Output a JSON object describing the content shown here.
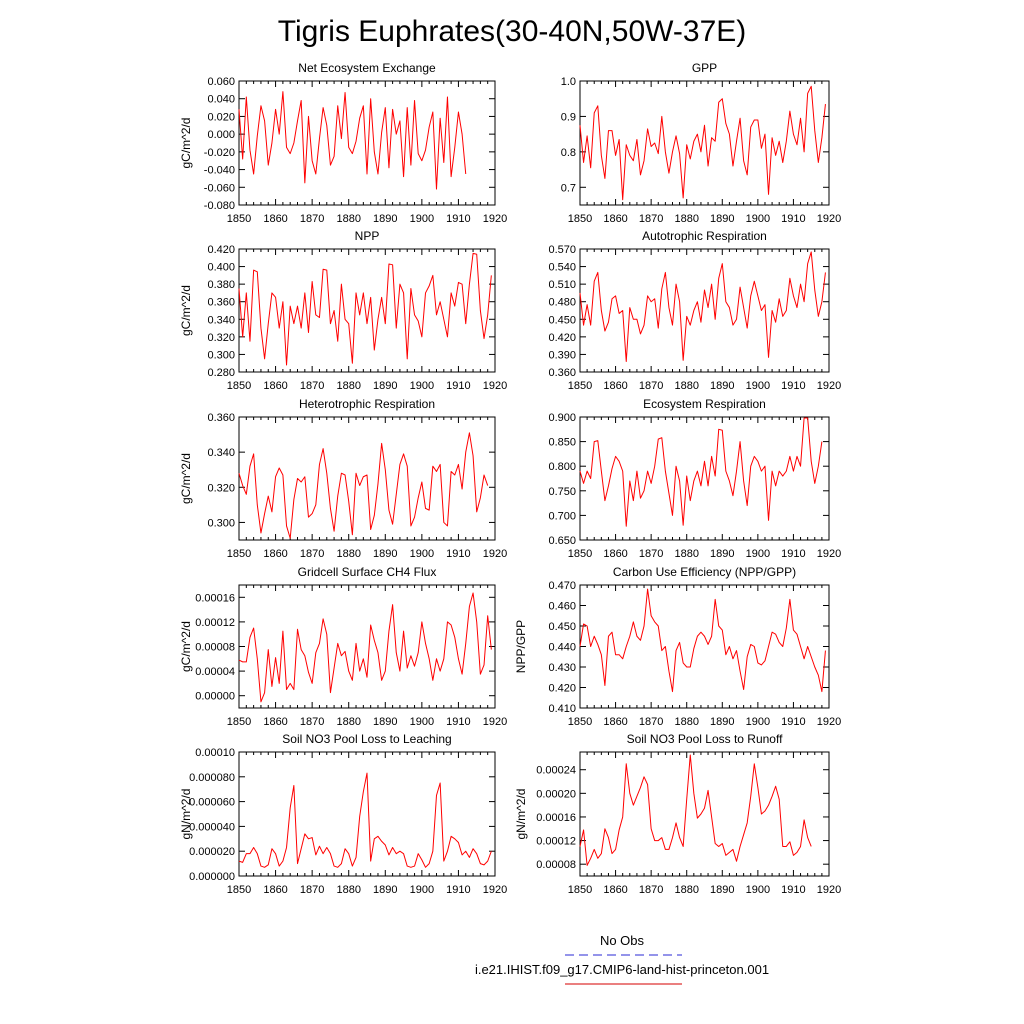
{
  "title": "Tigris Euphrates(30-40N,50W-37E)",
  "legend": {
    "entries": [
      {
        "label": "No Obs",
        "color": "#5555dd",
        "dash": true
      },
      {
        "label": "i.e21.IHIST.f09_g17.CMIP6-land-hist-princeton.001",
        "color": "#dd3333",
        "dash": false
      }
    ]
  },
  "colors": {
    "series": "#ff0000",
    "axis": "#000000"
  },
  "x_tick_labels": [
    "1850",
    "1860",
    "1870",
    "1880",
    "1890",
    "1900",
    "1910",
    "1920"
  ],
  "chart_data": [
    {
      "type": "line",
      "title": "Net Ecosystem Exchange",
      "ylabel": "gC/m^2/d",
      "xlim": [
        1850,
        1920
      ],
      "ylim": [
        -0.08,
        0.06
      ],
      "yticks": [
        "0.060",
        "0.040",
        "0.020",
        "0.000",
        "-0.020",
        "-0.040",
        "-0.060",
        "-0.080"
      ],
      "x_start": 1850,
      "values": [
        0.028,
        -0.028,
        0.042,
        -0.018,
        -0.045,
        -0.002,
        0.032,
        0.015,
        -0.035,
        -0.01,
        0.028,
        0.0,
        0.048,
        -0.015,
        -0.022,
        -0.01,
        0.015,
        0.038,
        -0.055,
        0.02,
        -0.03,
        -0.045,
        -0.005,
        0.03,
        0.01,
        -0.035,
        -0.025,
        0.032,
        -0.005,
        0.047,
        -0.015,
        -0.022,
        -0.008,
        0.018,
        0.032,
        -0.045,
        0.04,
        -0.02,
        -0.045,
        0.002,
        0.03,
        -0.038,
        0.028,
        0.0,
        0.015,
        -0.048,
        0.03,
        -0.035,
        0.038,
        -0.022,
        -0.03,
        -0.018,
        0.008,
        0.025,
        -0.062,
        0.018,
        -0.032,
        0.042,
        -0.048,
        -0.015,
        0.025,
        0.0,
        -0.045
      ]
    },
    {
      "type": "line",
      "title": "GPP",
      "ylabel": "",
      "xlim": [
        1850,
        1920
      ],
      "ylim": [
        0.65,
        1.0
      ],
      "yticks": [
        "1.0",
        "0.9",
        "0.8",
        "0.7"
      ],
      "x_start": 1850,
      "values": [
        0.875,
        0.77,
        0.845,
        0.755,
        0.91,
        0.93,
        0.79,
        0.725,
        0.86,
        0.86,
        0.79,
        0.835,
        0.665,
        0.82,
        0.79,
        0.775,
        0.835,
        0.735,
        0.775,
        0.865,
        0.815,
        0.825,
        0.795,
        0.9,
        0.8,
        0.74,
        0.8,
        0.845,
        0.795,
        0.67,
        0.82,
        0.78,
        0.83,
        0.85,
        0.8,
        0.875,
        0.76,
        0.84,
        0.83,
        0.94,
        0.95,
        0.88,
        0.85,
        0.76,
        0.83,
        0.895,
        0.775,
        0.735,
        0.87,
        0.89,
        0.89,
        0.81,
        0.85,
        0.68,
        0.84,
        0.79,
        0.83,
        0.77,
        0.83,
        0.915,
        0.85,
        0.82,
        0.895,
        0.8,
        0.965,
        0.985,
        0.86,
        0.77,
        0.84,
        0.935
      ]
    },
    {
      "type": "line",
      "title": "NPP",
      "ylabel": "gC/m^2/d",
      "xlim": [
        1850,
        1920
      ],
      "ylim": [
        0.28,
        0.42
      ],
      "yticks": [
        "0.420",
        "0.400",
        "0.380",
        "0.360",
        "0.340",
        "0.320",
        "0.300",
        "0.280"
      ],
      "x_start": 1850,
      "values": [
        0.375,
        0.32,
        0.37,
        0.315,
        0.396,
        0.394,
        0.33,
        0.295,
        0.335,
        0.37,
        0.365,
        0.33,
        0.36,
        0.288,
        0.355,
        0.335,
        0.355,
        0.33,
        0.37,
        0.325,
        0.383,
        0.345,
        0.342,
        0.397,
        0.396,
        0.335,
        0.35,
        0.315,
        0.38,
        0.34,
        0.335,
        0.29,
        0.37,
        0.345,
        0.37,
        0.335,
        0.365,
        0.305,
        0.34,
        0.365,
        0.335,
        0.403,
        0.402,
        0.33,
        0.38,
        0.37,
        0.295,
        0.375,
        0.345,
        0.338,
        0.32,
        0.37,
        0.378,
        0.39,
        0.345,
        0.36,
        0.34,
        0.32,
        0.37,
        0.355,
        0.382,
        0.38,
        0.335,
        0.38,
        0.415,
        0.414,
        0.35,
        0.318,
        0.345,
        0.39
      ]
    },
    {
      "type": "line",
      "title": "Autotrophic Respiration",
      "ylabel": "",
      "xlim": [
        1850,
        1920
      ],
      "ylim": [
        0.36,
        0.57
      ],
      "yticks": [
        "0.570",
        "0.540",
        "0.510",
        "0.480",
        "0.450",
        "0.420",
        "0.390",
        "0.360"
      ],
      "x_start": 1850,
      "values": [
        0.495,
        0.44,
        0.475,
        0.44,
        0.515,
        0.53,
        0.465,
        0.43,
        0.445,
        0.485,
        0.49,
        0.46,
        0.465,
        0.378,
        0.47,
        0.45,
        0.45,
        0.425,
        0.44,
        0.49,
        0.48,
        0.485,
        0.435,
        0.502,
        0.53,
        0.47,
        0.44,
        0.51,
        0.48,
        0.38,
        0.455,
        0.44,
        0.465,
        0.48,
        0.445,
        0.5,
        0.47,
        0.51,
        0.45,
        0.52,
        0.545,
        0.48,
        0.47,
        0.44,
        0.45,
        0.505,
        0.47,
        0.435,
        0.49,
        0.515,
        0.49,
        0.465,
        0.475,
        0.385,
        0.465,
        0.445,
        0.485,
        0.455,
        0.465,
        0.52,
        0.49,
        0.47,
        0.51,
        0.48,
        0.545,
        0.565,
        0.5,
        0.455,
        0.48,
        0.53
      ]
    },
    {
      "type": "line",
      "title": "Heterotrophic Respiration",
      "ylabel": "gC/m^2/d",
      "xlim": [
        1850,
        1920
      ],
      "ylim": [
        0.29,
        0.36
      ],
      "yticks": [
        "0.360",
        "0.340",
        "0.320",
        "0.300"
      ],
      "x_start": 1850,
      "values": [
        0.328,
        0.321,
        0.316,
        0.332,
        0.339,
        0.31,
        0.294,
        0.305,
        0.315,
        0.306,
        0.326,
        0.331,
        0.327,
        0.298,
        0.291,
        0.313,
        0.325,
        0.323,
        0.326,
        0.303,
        0.305,
        0.31,
        0.333,
        0.342,
        0.328,
        0.308,
        0.295,
        0.315,
        0.328,
        0.327,
        0.312,
        0.293,
        0.328,
        0.321,
        0.326,
        0.327,
        0.296,
        0.304,
        0.322,
        0.345,
        0.33,
        0.307,
        0.299,
        0.316,
        0.333,
        0.339,
        0.332,
        0.298,
        0.303,
        0.314,
        0.323,
        0.308,
        0.307,
        0.332,
        0.329,
        0.333,
        0.3,
        0.298,
        0.329,
        0.327,
        0.333,
        0.319,
        0.34,
        0.351,
        0.338,
        0.306,
        0.314,
        0.327,
        0.321
      ]
    },
    {
      "type": "line",
      "title": "Ecosystem Respiration",
      "ylabel": "",
      "xlim": [
        1850,
        1920
      ],
      "ylim": [
        0.65,
        0.9
      ],
      "yticks": [
        "0.900",
        "0.850",
        "0.800",
        "0.750",
        "0.700",
        "0.650"
      ],
      "x_start": 1850,
      "values": [
        0.79,
        0.765,
        0.79,
        0.775,
        0.85,
        0.852,
        0.79,
        0.73,
        0.76,
        0.795,
        0.82,
        0.81,
        0.79,
        0.678,
        0.77,
        0.73,
        0.79,
        0.735,
        0.75,
        0.79,
        0.765,
        0.8,
        0.855,
        0.858,
        0.79,
        0.745,
        0.7,
        0.8,
        0.77,
        0.68,
        0.78,
        0.73,
        0.77,
        0.79,
        0.76,
        0.81,
        0.76,
        0.82,
        0.78,
        0.875,
        0.873,
        0.79,
        0.77,
        0.74,
        0.79,
        0.85,
        0.77,
        0.72,
        0.8,
        0.82,
        0.81,
        0.79,
        0.8,
        0.69,
        0.79,
        0.76,
        0.79,
        0.78,
        0.79,
        0.82,
        0.79,
        0.82,
        0.8,
        0.898,
        0.898,
        0.81,
        0.765,
        0.8,
        0.85
      ]
    },
    {
      "type": "line",
      "title": "Gridcell Surface CH4 Flux",
      "ylabel": "gC/m^2/d",
      "xlim": [
        1850,
        1920
      ],
      "ylim": [
        -2e-05,
        0.00018
      ],
      "yticks": [
        "0.00016",
        "0.00012",
        "0.00008",
        "0.00004",
        "0.00000"
      ],
      "x_start": 1850,
      "values": [
        5.8e-05,
        5.5e-05,
        5.5e-05,
        9.5e-05,
        0.00011,
        6e-05,
        -1e-05,
        5e-06,
        7.5e-05,
        1.5e-05,
        6.2e-05,
        2e-05,
        0.000105,
        1e-05,
        2e-05,
        1e-05,
        0.000108,
        7.5e-05,
        6.5e-05,
        3.8e-05,
        2e-05,
        7e-05,
        8.5e-05,
        0.000125,
        0.0001,
        5e-06,
        4.5e-05,
        8.5e-05,
        6.5e-05,
        7.2e-05,
        4e-05,
        2.5e-05,
        8.5e-05,
        4e-05,
        6e-05,
        3e-05,
        0.000115,
        9e-05,
        7e-05,
        2.5e-05,
        4e-05,
        0.000105,
        0.000148,
        7e-05,
        4e-05,
        0.000105,
        4.5e-05,
        6.5e-05,
        4.8e-05,
        7e-05,
        0.00012,
        8.5e-05,
        6e-05,
        2.5e-05,
        6e-05,
        4e-05,
        6e-05,
        0.00012,
        0.000115,
        9.5e-05,
        6e-05,
        3.5e-05,
        8.5e-05,
        0.000145,
        0.000167,
        0.00012,
        3.5e-05,
        5e-05,
        0.00013,
        7.5e-05
      ]
    },
    {
      "type": "line",
      "title": "Carbon Use Efficiency (NPP/GPP)",
      "ylabel": "NPP/GPP",
      "xlim": [
        1850,
        1920
      ],
      "ylim": [
        0.41,
        0.47
      ],
      "yticks": [
        "0.470",
        "0.460",
        "0.450",
        "0.440",
        "0.430",
        "0.420",
        "0.410"
      ],
      "x_start": 1850,
      "values": [
        0.44,
        0.451,
        0.45,
        0.44,
        0.445,
        0.441,
        0.436,
        0.421,
        0.445,
        0.447,
        0.436,
        0.436,
        0.434,
        0.44,
        0.445,
        0.452,
        0.445,
        0.443,
        0.45,
        0.468,
        0.455,
        0.452,
        0.45,
        0.438,
        0.44,
        0.428,
        0.418,
        0.438,
        0.442,
        0.432,
        0.43,
        0.43,
        0.439,
        0.445,
        0.447,
        0.445,
        0.441,
        0.445,
        0.463,
        0.45,
        0.448,
        0.436,
        0.44,
        0.434,
        0.438,
        0.428,
        0.419,
        0.435,
        0.441,
        0.44,
        0.432,
        0.431,
        0.433,
        0.44,
        0.447,
        0.446,
        0.442,
        0.44,
        0.449,
        0.463,
        0.448,
        0.446,
        0.44,
        0.434,
        0.44,
        0.435,
        0.43,
        0.426,
        0.418,
        0.438
      ]
    },
    {
      "type": "line",
      "title": "Soil NO3 Pool Loss to Leaching",
      "ylabel": "gN/m^2/d",
      "xlim": [
        1850,
        1920
      ],
      "ylim": [
        0,
        0.0001
      ],
      "yticks": [
        "0.00010",
        "0.000080",
        "0.000060",
        "0.000040",
        "0.000020",
        "0.000000"
      ],
      "x_start": 1850,
      "values": [
        1.2e-05,
        1.1e-05,
        1.8e-05,
        1.8e-05,
        2.3e-05,
        1.8e-05,
        8e-06,
        7e-06,
        9e-06,
        2.2e-05,
        1.8e-05,
        8e-06,
        1.2e-05,
        2.3e-05,
        5.5e-05,
        7.3e-05,
        1e-05,
        2.2e-05,
        3.4e-05,
        3e-05,
        3.1e-05,
        1.7e-05,
        2.4e-05,
        1.8e-05,
        2.3e-05,
        1.8e-05,
        8e-06,
        7e-06,
        1e-05,
        2.2e-05,
        1.8e-05,
        8e-06,
        1.5e-05,
        4.8e-05,
        6.8e-05,
        8.3e-05,
        1.2e-05,
        3e-05,
        3.2e-05,
        2.8e-05,
        2.5e-05,
        1.7e-05,
        2.3e-05,
        1.8e-05,
        2e-05,
        1.8e-05,
        8e-06,
        7e-06,
        8e-06,
        1.8e-05,
        1.3e-05,
        7e-06,
        1e-05,
        2e-05,
        6.5e-05,
        7.5e-05,
        1.2e-05,
        2e-05,
        3.2e-05,
        3e-05,
        2.7e-05,
        1.7e-05,
        2e-05,
        1.5e-05,
        2.2e-05,
        1.8e-05,
        1e-05,
        9e-06,
        1.2e-05,
        2e-05
      ]
    },
    {
      "type": "line",
      "title": "Soil NO3 Pool Loss to Runoff",
      "ylabel": "gN/m^2/d",
      "xlim": [
        1850,
        1920
      ],
      "ylim": [
        6e-05,
        0.00027
      ],
      "yticks": [
        "0.00024",
        "0.00020",
        "0.00016",
        "0.00012",
        "0.00008"
      ],
      "x_start": 1850,
      "values": [
        0.00011,
        0.000138,
        7.8e-05,
        9e-05,
        0.000105,
        9e-05,
        9.8e-05,
        0.00014,
        0.000125,
        9.8e-05,
        0.000105,
        0.000138,
        0.00016,
        0.00025,
        0.0002,
        0.00018,
        0.000195,
        0.00021,
        0.000228,
        0.000215,
        0.00014,
        0.00012,
        0.00012,
        0.000125,
        0.000105,
        0.000105,
        0.000125,
        0.00015,
        0.000125,
        0.00011,
        0.00019,
        0.000265,
        0.0002,
        0.000158,
        0.000165,
        0.000175,
        0.000205,
        0.00016,
        0.000115,
        0.00011,
        0.000115,
        9.5e-05,
        0.0001,
        0.000105,
        8.5e-05,
        0.00011,
        0.00013,
        0.00015,
        0.000195,
        0.00025,
        0.00021,
        0.000165,
        0.00017,
        0.00018,
        0.000195,
        0.000212,
        0.00019,
        0.00011,
        0.00011,
        0.000118,
        9.5e-05,
        0.0001,
        0.00011,
        0.000155,
        0.000125,
        0.00011
      ]
    }
  ]
}
